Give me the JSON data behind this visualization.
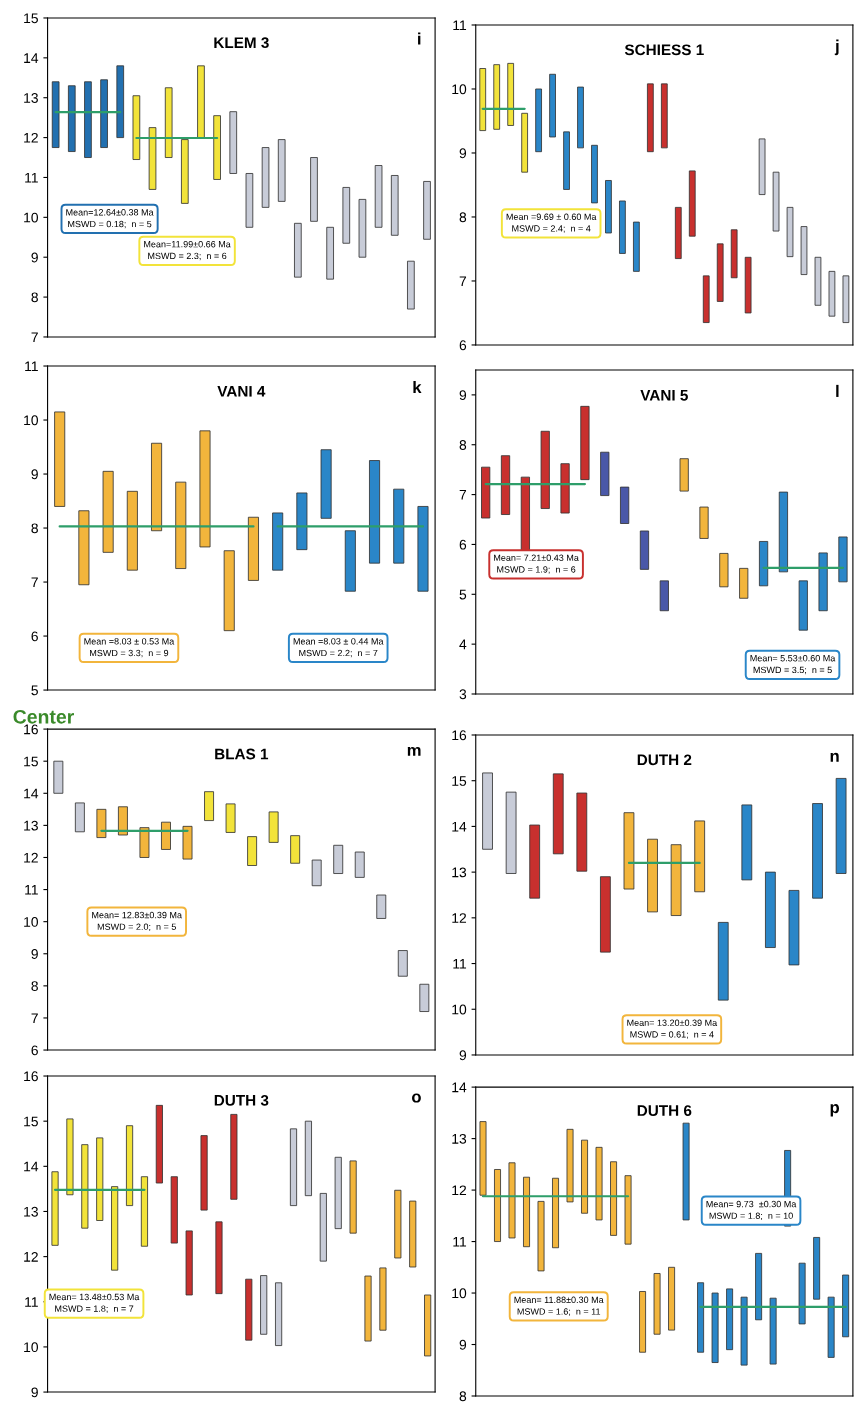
{
  "chart_data": [
    {
      "type": "bar",
      "title": "KLEM 3",
      "tick_labels": "y",
      "ylim": [
        7,
        15
      ],
      "yticks": [
        7,
        8,
        9,
        10,
        11,
        12,
        13,
        14,
        15
      ],
      "categories": [
        null,
        null,
        null,
        null,
        null,
        null,
        null,
        null,
        null,
        null,
        null,
        null,
        null,
        null,
        null,
        null,
        null,
        null,
        null,
        null,
        null,
        null,
        null,
        null
      ],
      "series": [
        {
          "type": "bar",
          "base": [
            11.75,
            11.65,
            11.5,
            11.75,
            12.0,
            11.45,
            10.7,
            11.5,
            10.35,
            12.0,
            10.95,
            11.1,
            9.75,
            10.25,
            10.4,
            8.5,
            9.9,
            8.45,
            9.35,
            9.0,
            9.75,
            9.55,
            7.7,
            9.45
          ],
          "values": [
            1.65,
            1.65,
            1.9,
            1.7,
            1.8,
            1.6,
            1.55,
            1.75,
            1.6,
            1.8,
            1.6,
            1.55,
            1.35,
            1.5,
            1.55,
            1.35,
            1.6,
            1.3,
            1.4,
            1.45,
            1.55,
            1.5,
            1.2,
            1.45
          ],
          "colors": [
            "#2270b0",
            "#2270b0",
            "#2270b0",
            "#2270b0",
            "#2270b0",
            "#f2e33a",
            "#f2e33a",
            "#f2e33a",
            "#f2e33a",
            "#f2e33a",
            "#f2e33a",
            "#c8ccd8",
            "#c8ccd8",
            "#c8ccd8",
            "#c8ccd8",
            "#c8ccd8",
            "#c8ccd8",
            "#c8ccd8",
            "#c8ccd8",
            "#c8ccd8",
            "#c8ccd8",
            "#c8ccd8",
            "#c8ccd8",
            "#c8ccd8"
          ]
        },
        {
          "type": "line",
          "color": "#2e9e6a",
          "values": [
            12.64,
            12.64,
            12.64,
            12.64,
            12.64,
            null,
            null,
            null,
            null,
            null,
            null,
            null,
            null,
            null,
            null,
            null,
            null,
            null,
            null,
            null,
            null,
            null,
            null,
            null
          ]
        },
        {
          "type": "line",
          "color": "#2e9e6a",
          "values": [
            null,
            null,
            null,
            null,
            null,
            11.99,
            11.99,
            11.99,
            11.99,
            11.99,
            11.99,
            null,
            null,
            null,
            null,
            null,
            null,
            null,
            null,
            null,
            null,
            null,
            null,
            null
          ]
        }
      ],
      "annotations": [
        "i",
        "Mean=12.64±0.38 Ma\nMSWD = 0.18;  n = 5",
        "Mean=11.99±0.66 Ma\nMSWD = 2.3;  n = 6"
      ]
    },
    {
      "type": "bar",
      "title": "SCHIESS 1",
      "tick_labels": "y",
      "ylim": [
        6,
        11
      ],
      "yticks": [
        6,
        7,
        8,
        9,
        10,
        11
      ],
      "categories": [
        null,
        null,
        null,
        null,
        null,
        null,
        null,
        null,
        null,
        null,
        null,
        null,
        null,
        null,
        null,
        null,
        null,
        null,
        null,
        null,
        null,
        null,
        null,
        null,
        null,
        null,
        null
      ],
      "series": [
        {
          "type": "bar",
          "base": [
            9.35,
            9.37,
            9.43,
            8.7,
            9.02,
            9.25,
            8.43,
            9.08,
            8.22,
            7.75,
            7.43,
            7.15,
            9.02,
            9.08,
            7.35,
            7.7,
            6.35,
            6.68,
            7.05,
            6.5,
            8.35,
            7.78,
            7.38,
            7.1,
            6.62,
            6.45,
            6.35
          ],
          "values": [
            0.97,
            1.01,
            0.97,
            0.92,
            0.98,
            0.98,
            0.9,
            0.95,
            0.9,
            0.82,
            0.82,
            0.77,
            1.06,
            1.0,
            0.8,
            1.02,
            0.73,
            0.9,
            0.75,
            0.87,
            0.87,
            0.92,
            0.77,
            0.75,
            0.75,
            0.7,
            0.73
          ],
          "colors": [
            "#f2e33a",
            "#f2e33a",
            "#f2e33a",
            "#f2e33a",
            "#2a86c8",
            "#2a86c8",
            "#2a86c8",
            "#2a86c8",
            "#2a86c8",
            "#2a86c8",
            "#2a86c8",
            "#2a86c8",
            "#c8302e",
            "#c8302e",
            "#c8302e",
            "#c8302e",
            "#c8302e",
            "#c8302e",
            "#c8302e",
            "#c8302e",
            "#c8ccd8",
            "#c8ccd8",
            "#c8ccd8",
            "#c8ccd8",
            "#c8ccd8",
            "#c8ccd8",
            "#c8ccd8"
          ]
        },
        {
          "type": "line",
          "color": "#2e9e6a",
          "values": [
            9.69,
            9.69,
            9.69,
            9.69,
            null,
            null,
            null,
            null,
            null,
            null,
            null,
            null,
            null,
            null,
            null,
            null,
            null,
            null,
            null,
            null,
            null,
            null,
            null,
            null,
            null,
            null,
            null
          ]
        }
      ],
      "annotations": [
        "j",
        "Mean =9.69 ± 0.60 Ma\nMSWD = 2.4;  n = 4"
      ]
    },
    {
      "type": "bar",
      "title": "VANI 4",
      "tick_labels": "y",
      "ylim": [
        5,
        11
      ],
      "yticks": [
        5,
        6,
        7,
        8,
        9,
        10,
        11
      ],
      "categories": [
        null,
        null,
        null,
        null,
        null,
        null,
        null,
        null,
        null,
        null,
        null,
        null,
        null,
        null,
        null,
        null
      ],
      "series": [
        {
          "type": "bar",
          "base": [
            8.4,
            6.95,
            7.55,
            7.22,
            7.95,
            7.25,
            7.65,
            6.1,
            7.03,
            7.22,
            7.6,
            8.18,
            6.83,
            7.35,
            7.35,
            6.83
          ],
          "values": [
            1.75,
            1.37,
            1.5,
            1.46,
            1.62,
            1.6,
            2.15,
            1.48,
            1.17,
            1.06,
            1.05,
            1.27,
            1.12,
            1.9,
            1.37,
            1.57
          ],
          "colors": [
            "#f2b53c",
            "#f2b53c",
            "#f2b53c",
            "#f2b53c",
            "#f2b53c",
            "#f2b53c",
            "#f2b53c",
            "#f2b53c",
            "#f2b53c",
            "#2a86c8",
            "#2a86c8",
            "#2a86c8",
            "#2a86c8",
            "#2a86c8",
            "#2a86c8",
            "#2a86c8"
          ]
        },
        {
          "type": "line",
          "color": "#2e9e6a",
          "values": [
            8.03,
            8.03,
            8.03,
            8.03,
            8.03,
            8.03,
            8.03,
            8.03,
            8.03,
            null,
            null,
            null,
            null,
            null,
            null,
            null
          ]
        },
        {
          "type": "line",
          "color": "#2e9e6a",
          "values": [
            null,
            null,
            null,
            null,
            null,
            null,
            null,
            null,
            null,
            8.03,
            8.03,
            8.03,
            8.03,
            8.03,
            8.03,
            8.03
          ]
        }
      ],
      "annotations": [
        "k",
        "Mean =8.03 ± 0.53 Ma\nMSWD = 3.3;  n = 9",
        "Mean =8.03 ± 0.44 Ma\nMSWD = 2.2;  n = 7"
      ]
    },
    {
      "type": "bar",
      "title": "VANI 5",
      "tick_labels": "y",
      "ylim": [
        3,
        9.5
      ],
      "yticks": [
        3,
        4,
        5,
        6,
        7,
        8,
        9
      ],
      "categories": [
        null,
        null,
        null,
        null,
        null,
        null,
        null,
        null,
        null,
        null,
        null,
        null,
        null,
        null,
        null,
        null,
        null,
        null,
        null
      ],
      "series": [
        {
          "type": "bar",
          "base": [
            6.53,
            6.6,
            5.87,
            6.72,
            6.63,
            7.3,
            6.98,
            6.42,
            5.5,
            4.67,
            7.07,
            6.12,
            5.15,
            4.92,
            5.17,
            5.45,
            4.28,
            4.67,
            5.25
          ],
          "values": [
            1.02,
            1.18,
            1.48,
            1.55,
            0.99,
            1.47,
            0.87,
            0.73,
            0.77,
            0.6,
            0.65,
            0.63,
            0.67,
            0.6,
            0.89,
            1.6,
            0.99,
            1.16,
            0.9
          ],
          "colors": [
            "#c8302e",
            "#c8302e",
            "#c8302e",
            "#c8302e",
            "#c8302e",
            "#c8302e",
            "#4a58a8",
            "#4a58a8",
            "#4a58a8",
            "#4a58a8",
            "#f2b53c",
            "#f2b53c",
            "#f2b53c",
            "#f2b53c",
            "#2a86c8",
            "#2a86c8",
            "#2a86c8",
            "#2a86c8",
            "#2a86c8"
          ]
        },
        {
          "type": "line",
          "color": "#2e9e6a",
          "values": [
            7.21,
            7.21,
            7.21,
            7.21,
            7.21,
            7.21,
            null,
            null,
            null,
            null,
            null,
            null,
            null,
            null,
            null,
            null,
            null,
            null,
            null
          ]
        },
        {
          "type": "line",
          "color": "#2e9e6a",
          "values": [
            null,
            null,
            null,
            null,
            null,
            null,
            null,
            null,
            null,
            null,
            null,
            null,
            null,
            null,
            5.53,
            5.53,
            5.53,
            5.53,
            5.53
          ]
        }
      ],
      "annotations": [
        "l",
        "Mean= 7.21±0.43 Ma\nMSWD = 1.9;  n = 6",
        "Mean= 5.53±0.60 Ma\nMSWD = 3.5;  n = 5"
      ]
    },
    {
      "type": "bar",
      "title": "BLAS 1",
      "tick_labels": "y",
      "ylim": [
        6,
        16
      ],
      "yticks": [
        6,
        7,
        8,
        9,
        10,
        11,
        12,
        13,
        14,
        15,
        16
      ],
      "categories": [
        null,
        null,
        null,
        null,
        null,
        null,
        null,
        null,
        null,
        null,
        null,
        null,
        null,
        null,
        null,
        null,
        null,
        null
      ],
      "series": [
        {
          "type": "bar",
          "base": [
            14.0,
            12.8,
            12.62,
            12.7,
            12.0,
            12.25,
            11.95,
            13.15,
            12.78,
            11.75,
            12.47,
            11.82,
            11.12,
            11.5,
            11.38,
            10.1,
            8.3,
            7.2
          ],
          "values": [
            1.0,
            0.9,
            0.88,
            0.88,
            0.93,
            0.85,
            1.02,
            0.9,
            0.89,
            0.9,
            0.95,
            0.86,
            0.8,
            0.88,
            0.79,
            0.73,
            0.8,
            0.85
          ],
          "colors": [
            "#c8ccd8",
            "#c8ccd8",
            "#f2b53c",
            "#f2b53c",
            "#f2b53c",
            "#f2b53c",
            "#f2b53c",
            "#f2e33a",
            "#f2e33a",
            "#f2e33a",
            "#f2e33a",
            "#f2e33a",
            "#c8ccd8",
            "#c8ccd8",
            "#c8ccd8",
            "#c8ccd8",
            "#c8ccd8",
            "#c8ccd8"
          ]
        },
        {
          "type": "line",
          "color": "#2e9e6a",
          "values": [
            null,
            null,
            12.83,
            12.83,
            12.83,
            12.83,
            12.83,
            null,
            null,
            null,
            null,
            null,
            null,
            null,
            null,
            null,
            null,
            null
          ]
        }
      ],
      "annotations": [
        "m",
        "Mean= 12.83±0.39 Ma\nMSWD = 2.0;  n = 5",
        "Center"
      ]
    },
    {
      "type": "bar",
      "title": "DUTH 2",
      "tick_labels": "y",
      "ylim": [
        9,
        16
      ],
      "yticks": [
        9,
        10,
        11,
        12,
        13,
        14,
        15,
        16
      ],
      "categories": [
        null,
        null,
        null,
        null,
        null,
        null,
        null,
        null,
        null,
        null,
        null,
        null,
        null,
        null,
        null,
        null
      ],
      "series": [
        {
          "type": "bar",
          "base": [
            13.5,
            12.97,
            12.43,
            13.4,
            13.02,
            11.25,
            12.63,
            12.13,
            12.05,
            12.57,
            10.2,
            12.83,
            11.35,
            10.97,
            12.43,
            12.97
          ],
          "values": [
            1.67,
            1.78,
            1.6,
            1.75,
            1.71,
            1.65,
            1.67,
            1.59,
            1.55,
            1.55,
            1.7,
            1.64,
            1.65,
            1.63,
            2.07,
            2.08
          ],
          "colors": [
            "#c8ccd8",
            "#c8ccd8",
            "#c8302e",
            "#c8302e",
            "#c8302e",
            "#c8302e",
            "#f2b53c",
            "#f2b53c",
            "#f2b53c",
            "#f2b53c",
            "#2a86c8",
            "#2a86c8",
            "#2a86c8",
            "#2a86c8",
            "#2a86c8",
            "#2a86c8"
          ]
        },
        {
          "type": "line",
          "color": "#2e9e6a",
          "values": [
            null,
            null,
            null,
            null,
            null,
            null,
            13.2,
            13.2,
            13.2,
            13.2,
            null,
            null,
            null,
            null,
            null,
            null
          ]
        }
      ],
      "annotations": [
        "n",
        "Mean= 13.20±0.39 Ma\nMSWD = 0.61;  n = 4"
      ]
    },
    {
      "type": "bar",
      "title": "DUTH 3",
      "tick_labels": "y",
      "ylim": [
        9,
        16
      ],
      "yticks": [
        9,
        10,
        11,
        12,
        13,
        14,
        15,
        16
      ],
      "categories": [
        null,
        null,
        null,
        null,
        null,
        null,
        null,
        null,
        null,
        null,
        null,
        null,
        null,
        null,
        null,
        null,
        null,
        null,
        null,
        null,
        null,
        null,
        null,
        null,
        null,
        null
      ],
      "series": [
        {
          "type": "bar",
          "base": [
            12.25,
            13.37,
            12.63,
            12.8,
            11.7,
            13.13,
            12.23,
            13.63,
            12.3,
            11.15,
            13.03,
            11.18,
            13.27,
            10.15,
            10.28,
            10.03,
            13.13,
            13.35,
            11.9,
            12.62,
            12.52,
            10.13,
            10.37,
            11.97,
            11.77,
            9.8
          ],
          "values": [
            1.63,
            1.68,
            1.85,
            1.83,
            1.85,
            1.77,
            1.54,
            1.72,
            1.47,
            1.42,
            1.65,
            1.59,
            1.88,
            1.35,
            1.3,
            1.39,
            1.7,
            1.65,
            1.5,
            1.58,
            1.6,
            1.44,
            1.38,
            1.5,
            1.46,
            1.35
          ],
          "colors": [
            "#f2e33a",
            "#f2e33a",
            "#f2e33a",
            "#f2e33a",
            "#f2e33a",
            "#f2e33a",
            "#f2e33a",
            "#c8302e",
            "#c8302e",
            "#c8302e",
            "#c8302e",
            "#c8302e",
            "#c8302e",
            "#c8302e",
            "#c8ccd8",
            "#c8ccd8",
            "#c8ccd8",
            "#c8ccd8",
            "#c8ccd8",
            "#c8ccd8",
            "#f2b53c",
            "#f2b53c",
            "#f2b53c",
            "#f2b53c",
            "#f2b53c",
            "#f2b53c"
          ]
        },
        {
          "type": "line",
          "color": "#2e9e6a",
          "values": [
            13.48,
            13.48,
            13.48,
            13.48,
            13.48,
            13.48,
            13.48,
            null,
            null,
            null,
            null,
            null,
            null,
            null,
            null,
            null,
            null,
            null,
            null,
            null,
            null,
            null,
            null,
            null,
            null,
            null
          ]
        }
      ],
      "annotations": [
        "o",
        "Mean= 13.48±0.53 Ma\nMSWD = 1.8;  n = 7"
      ]
    },
    {
      "type": "bar",
      "title": "DUTH 6",
      "tick_labels": "y",
      "ylim": [
        8,
        14
      ],
      "yticks": [
        8,
        9,
        10,
        11,
        12,
        13,
        14
      ],
      "categories": [
        null,
        null,
        null,
        null,
        null,
        null,
        null,
        null,
        null,
        null,
        null,
        null,
        null,
        null,
        null,
        null,
        null,
        null,
        null,
        null,
        null,
        null,
        null,
        null,
        null,
        null
      ],
      "series": [
        {
          "type": "bar",
          "base": [
            11.9,
            11.0,
            11.07,
            10.9,
            10.43,
            10.88,
            11.77,
            11.55,
            11.42,
            11.12,
            10.95,
            8.85,
            9.2,
            9.28,
            11.42,
            8.85,
            8.65,
            8.9,
            8.6,
            9.48,
            8.62,
            11.3,
            9.4,
            9.88,
            8.75,
            9.15
          ],
          "values": [
            1.43,
            1.4,
            1.46,
            1.35,
            1.35,
            1.35,
            1.41,
            1.42,
            1.41,
            1.43,
            1.33,
            1.18,
            1.18,
            1.22,
            1.88,
            1.35,
            1.35,
            1.18,
            1.32,
            1.29,
            1.28,
            1.47,
            1.18,
            1.2,
            1.17,
            1.2
          ],
          "colors": [
            "#f2b53c",
            "#f2b53c",
            "#f2b53c",
            "#f2b53c",
            "#f2b53c",
            "#f2b53c",
            "#f2b53c",
            "#f2b53c",
            "#f2b53c",
            "#f2b53c",
            "#f2b53c",
            "#f2b53c",
            "#f2b53c",
            "#f2b53c",
            "#2a86c8",
            "#2a86c8",
            "#2a86c8",
            "#2a86c8",
            "#2a86c8",
            "#2a86c8",
            "#2a86c8",
            "#2a86c8",
            "#2a86c8",
            "#2a86c8",
            "#2a86c8",
            "#2a86c8"
          ]
        },
        {
          "type": "line",
          "color": "#2e9e6a",
          "values": [
            11.88,
            11.88,
            11.88,
            11.88,
            11.88,
            11.88,
            11.88,
            11.88,
            11.88,
            11.88,
            11.88,
            null,
            null,
            null,
            null,
            null,
            null,
            null,
            null,
            null,
            null,
            null,
            null,
            null,
            null,
            null
          ]
        },
        {
          "type": "line",
          "color": "#2e9e6a",
          "values": [
            null,
            null,
            null,
            null,
            null,
            null,
            null,
            null,
            null,
            null,
            null,
            null,
            null,
            null,
            null,
            9.73,
            9.73,
            9.73,
            9.73,
            9.73,
            9.73,
            9.73,
            9.73,
            9.73,
            9.73,
            9.73
          ]
        }
      ],
      "annotations": [
        "p",
        "Mean= 11.88±0.30 Ma\nMSWD = 1.6;  n = 11",
        "Mean= 9.73  ±0.30 Ma\nMSWD = 1.8;  n = 10"
      ]
    }
  ]
}
